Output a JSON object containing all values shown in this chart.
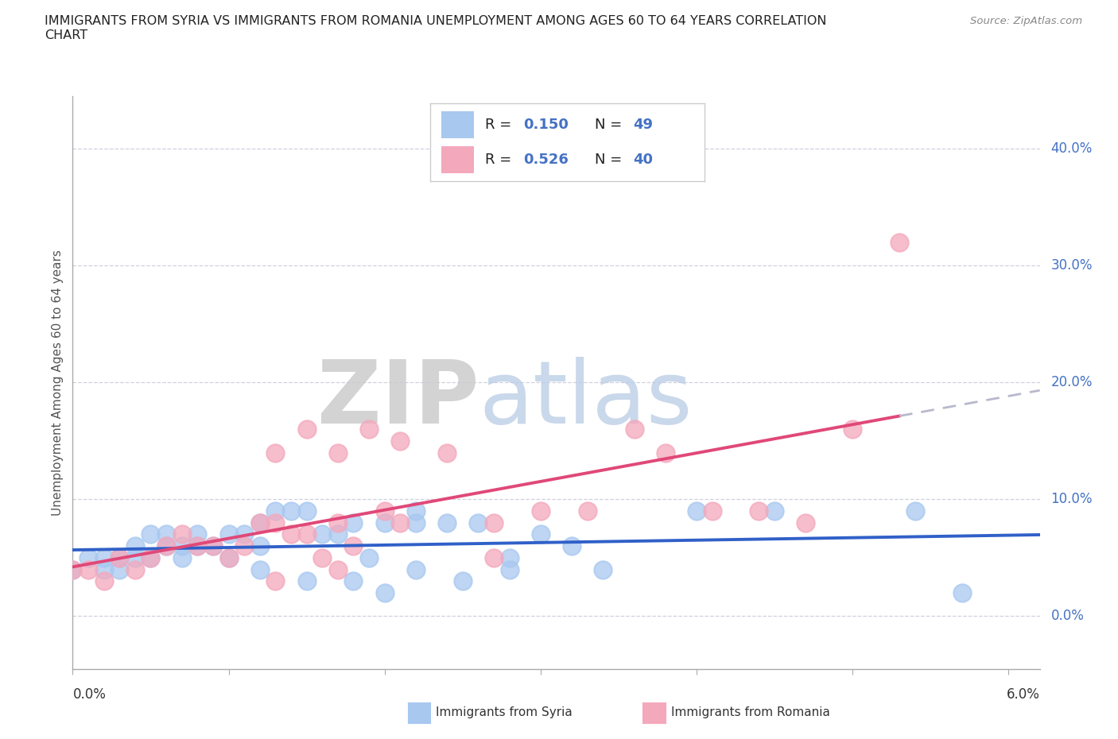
{
  "title_line1": "IMMIGRANTS FROM SYRIA VS IMMIGRANTS FROM ROMANIA UNEMPLOYMENT AMONG AGES 60 TO 64 YEARS CORRELATION",
  "title_line2": "CHART",
  "source": "Source: ZipAtlas.com",
  "ylabel": "Unemployment Among Ages 60 to 64 years",
  "ytick_labels": [
    "0.0%",
    "10.0%",
    "20.0%",
    "30.0%",
    "40.0%"
  ],
  "ytick_values": [
    0.0,
    0.1,
    0.2,
    0.3,
    0.4
  ],
  "xlim": [
    0.0,
    0.062
  ],
  "ylim": [
    -0.045,
    0.445
  ],
  "legend_syria_r_val": "0.150",
  "legend_syria_n_val": "49",
  "legend_romania_r_val": "0.526",
  "legend_romania_n_val": "40",
  "syria_color": "#a8c8f0",
  "romania_color": "#f4a8bc",
  "syria_line_color": "#3060c8",
  "romania_line_color": "#e04878",
  "label_color": "#4472c4",
  "background_color": "#ffffff",
  "grid_color": "#d0d0e0",
  "syria_x": [
    0.0,
    0.001,
    0.002,
    0.002,
    0.003,
    0.003,
    0.004,
    0.004,
    0.005,
    0.005,
    0.006,
    0.006,
    0.007,
    0.007,
    0.008,
    0.008,
    0.009,
    0.01,
    0.01,
    0.011,
    0.012,
    0.012,
    0.013,
    0.014,
    0.015,
    0.016,
    0.017,
    0.018,
    0.019,
    0.02,
    0.022,
    0.022,
    0.024,
    0.026,
    0.028,
    0.03,
    0.032,
    0.034,
    0.04,
    0.045,
    0.012,
    0.015,
    0.02,
    0.025,
    0.018,
    0.022,
    0.028,
    0.054,
    0.057
  ],
  "syria_y": [
    0.04,
    0.05,
    0.04,
    0.05,
    0.04,
    0.05,
    0.05,
    0.06,
    0.05,
    0.07,
    0.06,
    0.07,
    0.06,
    0.05,
    0.07,
    0.06,
    0.06,
    0.07,
    0.05,
    0.07,
    0.08,
    0.06,
    0.09,
    0.09,
    0.09,
    0.07,
    0.07,
    0.08,
    0.05,
    0.08,
    0.09,
    0.08,
    0.08,
    0.08,
    0.05,
    0.07,
    0.06,
    0.04,
    0.09,
    0.09,
    0.04,
    0.03,
    0.02,
    0.03,
    0.03,
    0.04,
    0.04,
    0.09,
    0.02
  ],
  "romania_x": [
    0.0,
    0.001,
    0.002,
    0.003,
    0.004,
    0.005,
    0.006,
    0.007,
    0.008,
    0.009,
    0.01,
    0.011,
    0.012,
    0.013,
    0.014,
    0.015,
    0.016,
    0.017,
    0.018,
    0.02,
    0.013,
    0.015,
    0.017,
    0.019,
    0.021,
    0.024,
    0.027,
    0.03,
    0.033,
    0.036,
    0.038,
    0.041,
    0.044,
    0.047,
    0.05,
    0.053,
    0.013,
    0.017,
    0.021,
    0.027
  ],
  "romania_y": [
    0.04,
    0.04,
    0.03,
    0.05,
    0.04,
    0.05,
    0.06,
    0.07,
    0.06,
    0.06,
    0.05,
    0.06,
    0.08,
    0.08,
    0.07,
    0.07,
    0.05,
    0.08,
    0.06,
    0.09,
    0.14,
    0.16,
    0.14,
    0.16,
    0.15,
    0.14,
    0.08,
    0.09,
    0.09,
    0.16,
    0.14,
    0.09,
    0.09,
    0.08,
    0.16,
    0.32,
    0.03,
    0.04,
    0.08,
    0.05
  ]
}
